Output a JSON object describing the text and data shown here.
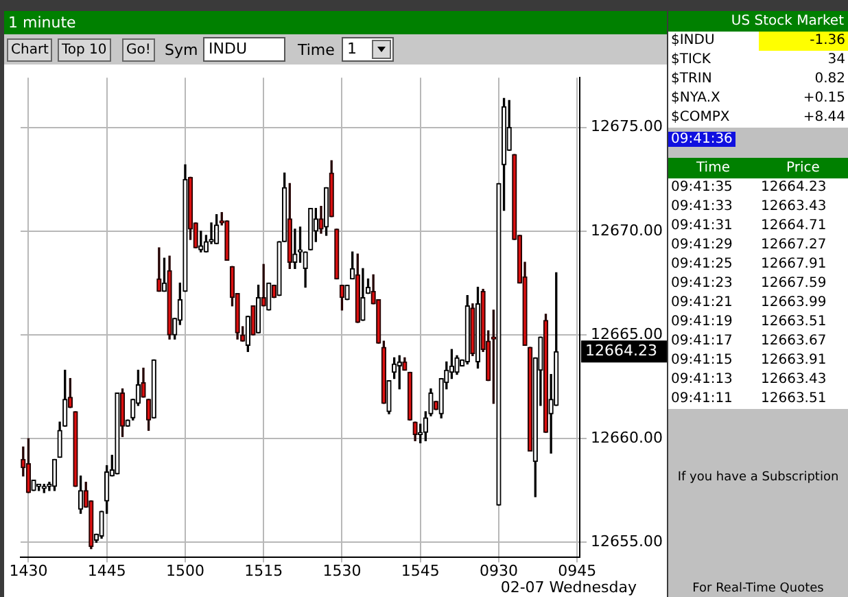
{
  "chart_data": {
    "type": "candlestick",
    "title": "1 minute",
    "categories": [
      null,
      "1430",
      null,
      null,
      null,
      null,
      null,
      null,
      null,
      null,
      null,
      null,
      null,
      null,
      null,
      null,
      "1445",
      null,
      null,
      null,
      null,
      null,
      null,
      null,
      null,
      null,
      null,
      null,
      null,
      null,
      null,
      "1500",
      null,
      null,
      null,
      null,
      null,
      null,
      null,
      null,
      null,
      null,
      null,
      null,
      null,
      null,
      "1515",
      null,
      null,
      null,
      null,
      null,
      null,
      null,
      null,
      null,
      null,
      null,
      null,
      null,
      null,
      "1530",
      null,
      null,
      null,
      null,
      null,
      null,
      null,
      null,
      null,
      null,
      null,
      null,
      null,
      null,
      "1545",
      null,
      null,
      null,
      null,
      null,
      null,
      null,
      null,
      null,
      null,
      null,
      null,
      null,
      null,
      "0930",
      null,
      null,
      null,
      null,
      null,
      null,
      null,
      null,
      null,
      null,
      null,
      null,
      null,
      null,
      "0945"
    ],
    "ohlc": [
      [
        12659.0,
        12659.6,
        12658.2,
        12658.6
      ],
      [
        12658.8,
        12660.0,
        12657.4,
        12657.4
      ],
      [
        12657.5,
        12658.0,
        12657.5,
        12658.0
      ],
      [
        12657.7,
        12657.8,
        12657.5,
        12657.8
      ],
      [
        12657.6,
        12657.8,
        12657.4,
        12657.7
      ],
      [
        12657.7,
        12657.9,
        12657.5,
        12657.8
      ],
      [
        12657.7,
        12659.0,
        12657.5,
        12659.0
      ],
      [
        12659.1,
        12660.8,
        12659.1,
        12660.4
      ],
      [
        12660.6,
        12663.3,
        12660.6,
        12661.9
      ],
      [
        12662.0,
        12662.9,
        12661.5,
        12661.5
      ],
      [
        12661.3,
        12661.3,
        12657.7,
        12657.7
      ],
      [
        12656.6,
        12658.2,
        12656.4,
        12657.5
      ],
      [
        12657.5,
        12657.9,
        12656.7,
        12656.7
      ],
      [
        12657.0,
        12657.0,
        12654.7,
        12654.8
      ],
      [
        12655.1,
        12655.4,
        12655.0,
        12655.4
      ],
      [
        12655.3,
        12656.5,
        12655.2,
        12656.5
      ],
      [
        12657.0,
        12658.7,
        12656.4,
        12658.4
      ],
      [
        12658.2,
        12659.2,
        12658.2,
        12658.5
      ],
      [
        12658.3,
        12662.2,
        12658.3,
        12662.2
      ],
      [
        12662.2,
        12662.4,
        12660.1,
        12660.6
      ],
      [
        12660.6,
        12660.9,
        12660.6,
        12660.9
      ],
      [
        12661.0,
        12661.9,
        12660.9,
        12661.9
      ],
      [
        12661.7,
        12663.3,
        12661.6,
        12662.6
      ],
      [
        12662.7,
        12663.4,
        12662.0,
        12662.0
      ],
      [
        12661.9,
        12661.9,
        12660.4,
        12660.9
      ],
      [
        12661.0,
        12663.8,
        12661.0,
        12663.8
      ],
      [
        12667.7,
        12669.2,
        12667.1,
        12667.1
      ],
      [
        12667.1,
        12668.7,
        12667.1,
        12667.5
      ],
      [
        12668.1,
        12668.8,
        12664.8,
        12665.0
      ],
      [
        12665.0,
        12665.8,
        12664.8,
        12665.8
      ],
      [
        12665.7,
        12667.5,
        12665.5,
        12666.7
      ],
      [
        12667.1,
        12673.2,
        12667.1,
        12672.5
      ],
      [
        12672.6,
        12672.6,
        12669.6,
        12670.1
      ],
      [
        12670.4,
        12670.4,
        12669.2,
        12669.2
      ],
      [
        12669.1,
        12670.0,
        12669.0,
        12669.3
      ],
      [
        12669.0,
        12669.8,
        12669.0,
        12669.5
      ],
      [
        12669.5,
        12670.4,
        12669.4,
        12669.6
      ],
      [
        12669.4,
        12670.8,
        12669.4,
        12670.3
      ],
      [
        12670.5,
        12670.9,
        12670.3,
        12670.4
      ],
      [
        12670.5,
        12670.5,
        12668.6,
        12668.6
      ],
      [
        12668.3,
        12668.3,
        12666.4,
        12666.8
      ],
      [
        12667.0,
        12667.0,
        12664.8,
        12665.1
      ],
      [
        12665.0,
        12665.4,
        12664.7,
        12664.7
      ],
      [
        12664.5,
        12665.9,
        12664.2,
        12665.9
      ],
      [
        12666.4,
        12666.4,
        12665.0,
        12665.0
      ],
      [
        12665.1,
        12667.4,
        12665.1,
        12666.8
      ],
      [
        12666.8,
        12668.4,
        12666.4,
        12666.4
      ],
      [
        12666.2,
        12667.5,
        12666.2,
        12667.5
      ],
      [
        12667.4,
        12667.4,
        12666.8,
        12666.8
      ],
      [
        12666.9,
        12669.5,
        12666.9,
        12669.5
      ],
      [
        12669.5,
        12672.8,
        12669.5,
        12672.1
      ],
      [
        12670.6,
        12672.3,
        12668.2,
        12668.5
      ],
      [
        12668.5,
        12670.1,
        12668.2,
        12668.9
      ],
      [
        12669.0,
        12670.2,
        12668.5,
        12669.1
      ],
      [
        12668.2,
        12669.0,
        12667.3,
        12669.0
      ],
      [
        12669.1,
        12671.1,
        12669.1,
        12671.1
      ],
      [
        12670.0,
        12671.1,
        12669.5,
        12670.6
      ],
      [
        12670.6,
        12671.2,
        12669.9,
        12670.1
      ],
      [
        12670.2,
        12672.1,
        12669.8,
        12672.1
      ],
      [
        12672.8,
        12673.4,
        12670.7,
        12670.7
      ],
      [
        12670.1,
        12670.1,
        12667.7,
        12667.7
      ],
      [
        12667.4,
        12667.4,
        12666.2,
        12666.8
      ],
      [
        12666.7,
        12667.4,
        12666.7,
        12667.4
      ],
      [
        12667.7,
        12669.0,
        12667.7,
        12668.2
      ],
      [
        12667.9,
        12668.9,
        12665.6,
        12665.6
      ],
      [
        12665.7,
        12668.2,
        12665.7,
        12666.8
      ],
      [
        12667.0,
        12667.7,
        12667.0,
        12667.3
      ],
      [
        12667.1,
        12667.9,
        12666.5,
        12666.5
      ],
      [
        12666.7,
        12666.7,
        12664.6,
        12664.6
      ],
      [
        12664.4,
        12664.7,
        12661.7,
        12661.7
      ],
      [
        12661.3,
        12662.8,
        12661.2,
        12662.8
      ],
      [
        12663.2,
        12663.9,
        12662.9,
        12663.6
      ],
      [
        12663.5,
        12664.0,
        12662.4,
        12663.7
      ],
      [
        12663.7,
        12663.9,
        12663.3,
        12663.3
      ],
      [
        12663.2,
        12663.2,
        12660.9,
        12660.9
      ],
      [
        12660.8,
        12660.8,
        12659.9,
        12660.2
      ],
      [
        12660.2,
        12660.7,
        12659.8,
        12660.3
      ],
      [
        12660.3,
        12661.3,
        12659.9,
        12661.0
      ],
      [
        12661.2,
        12662.4,
        12661.1,
        12662.2
      ],
      [
        12661.8,
        12661.8,
        12661.4,
        12661.4
      ],
      [
        12661.2,
        12662.9,
        12661.0,
        12662.9
      ],
      [
        12662.7,
        12663.7,
        12662.4,
        12663.3
      ],
      [
        12663.2,
        12664.3,
        12662.9,
        12663.5
      ],
      [
        12663.2,
        12664.0,
        12663.1,
        12663.9
      ],
      [
        12663.5,
        12663.8,
        12663.5,
        12663.8
      ],
      [
        12663.7,
        12666.9,
        12663.6,
        12666.4
      ],
      [
        12666.3,
        12666.5,
        12664.0,
        12664.1
      ],
      [
        12663.7,
        12667.3,
        12663.4,
        12666.5
      ],
      [
        12667.1,
        12667.2,
        12664.2,
        12664.3
      ],
      [
        12664.7,
        12665.2,
        12662.8,
        12662.8
      ],
      [
        12664.9,
        12666.2,
        12661.7,
        12664.8
      ],
      [
        12656.8,
        12672.3,
        12656.8,
        12672.3
      ],
      [
        12673.2,
        12676.4,
        12671.0,
        12676.0
      ],
      [
        12673.9,
        12676.3,
        12673.9,
        12675.0
      ],
      [
        12673.7,
        12673.7,
        12669.6,
        12669.6
      ],
      [
        12669.8,
        12669.8,
        12667.5,
        12667.5
      ],
      [
        12667.8,
        12668.5,
        12664.5,
        12664.5
      ],
      [
        12664.4,
        12664.4,
        12659.4,
        12659.4
      ],
      [
        12658.9,
        12663.9,
        12657.2,
        12663.9
      ],
      [
        12663.3,
        12664.9,
        12661.6,
        12664.9
      ],
      [
        12665.7,
        12666.0,
        12660.3,
        12660.3
      ],
      [
        12661.2,
        12663.1,
        12659.3,
        12661.9
      ],
      [
        12661.6,
        12668.0,
        12661.6,
        12664.2
      ],
      null,
      null,
      null,
      null
    ],
    "ylim": [
      12654.3,
      12677.4
    ],
    "yticks": [
      {
        "value": 12655,
        "label": "12655.00"
      },
      {
        "value": 12660,
        "label": "12660.00"
      },
      {
        "value": 12665,
        "label": "12665.00"
      },
      {
        "value": 12670,
        "label": "12670.00"
      },
      {
        "value": 12675,
        "label": "12675.00"
      }
    ],
    "grid": true,
    "annotations": [
      "02-07 Wednesday",
      "12664.23",
      "Chart",
      "Top 10",
      "Go!",
      "Sym",
      "INDU",
      "Time",
      "1",
      "US Stock Market",
      "$INDU",
      "-1.36",
      "$TICK",
      "34",
      "$TRIN",
      "0.82",
      "$NYA.X",
      "+0.15",
      "$COMPX",
      "+8.44",
      "09:41:36",
      "Time",
      "Price",
      "09:41:35",
      "12664.23",
      "09:41:33",
      "12663.43",
      "09:41:31",
      "12664.71",
      "09:41:29",
      "12667.27",
      "09:41:25",
      "12667.91",
      "09:41:23",
      "12667.59",
      "09:41:21",
      "12663.99",
      "09:41:19",
      "12663.51",
      "09:41:17",
      "12663.67",
      "09:41:15",
      "12663.91",
      "09:41:13",
      "12663.43",
      "09:41:11",
      "12663.51",
      "If you have a Subscription",
      "For Real-Time Quotes"
    ]
  }
}
